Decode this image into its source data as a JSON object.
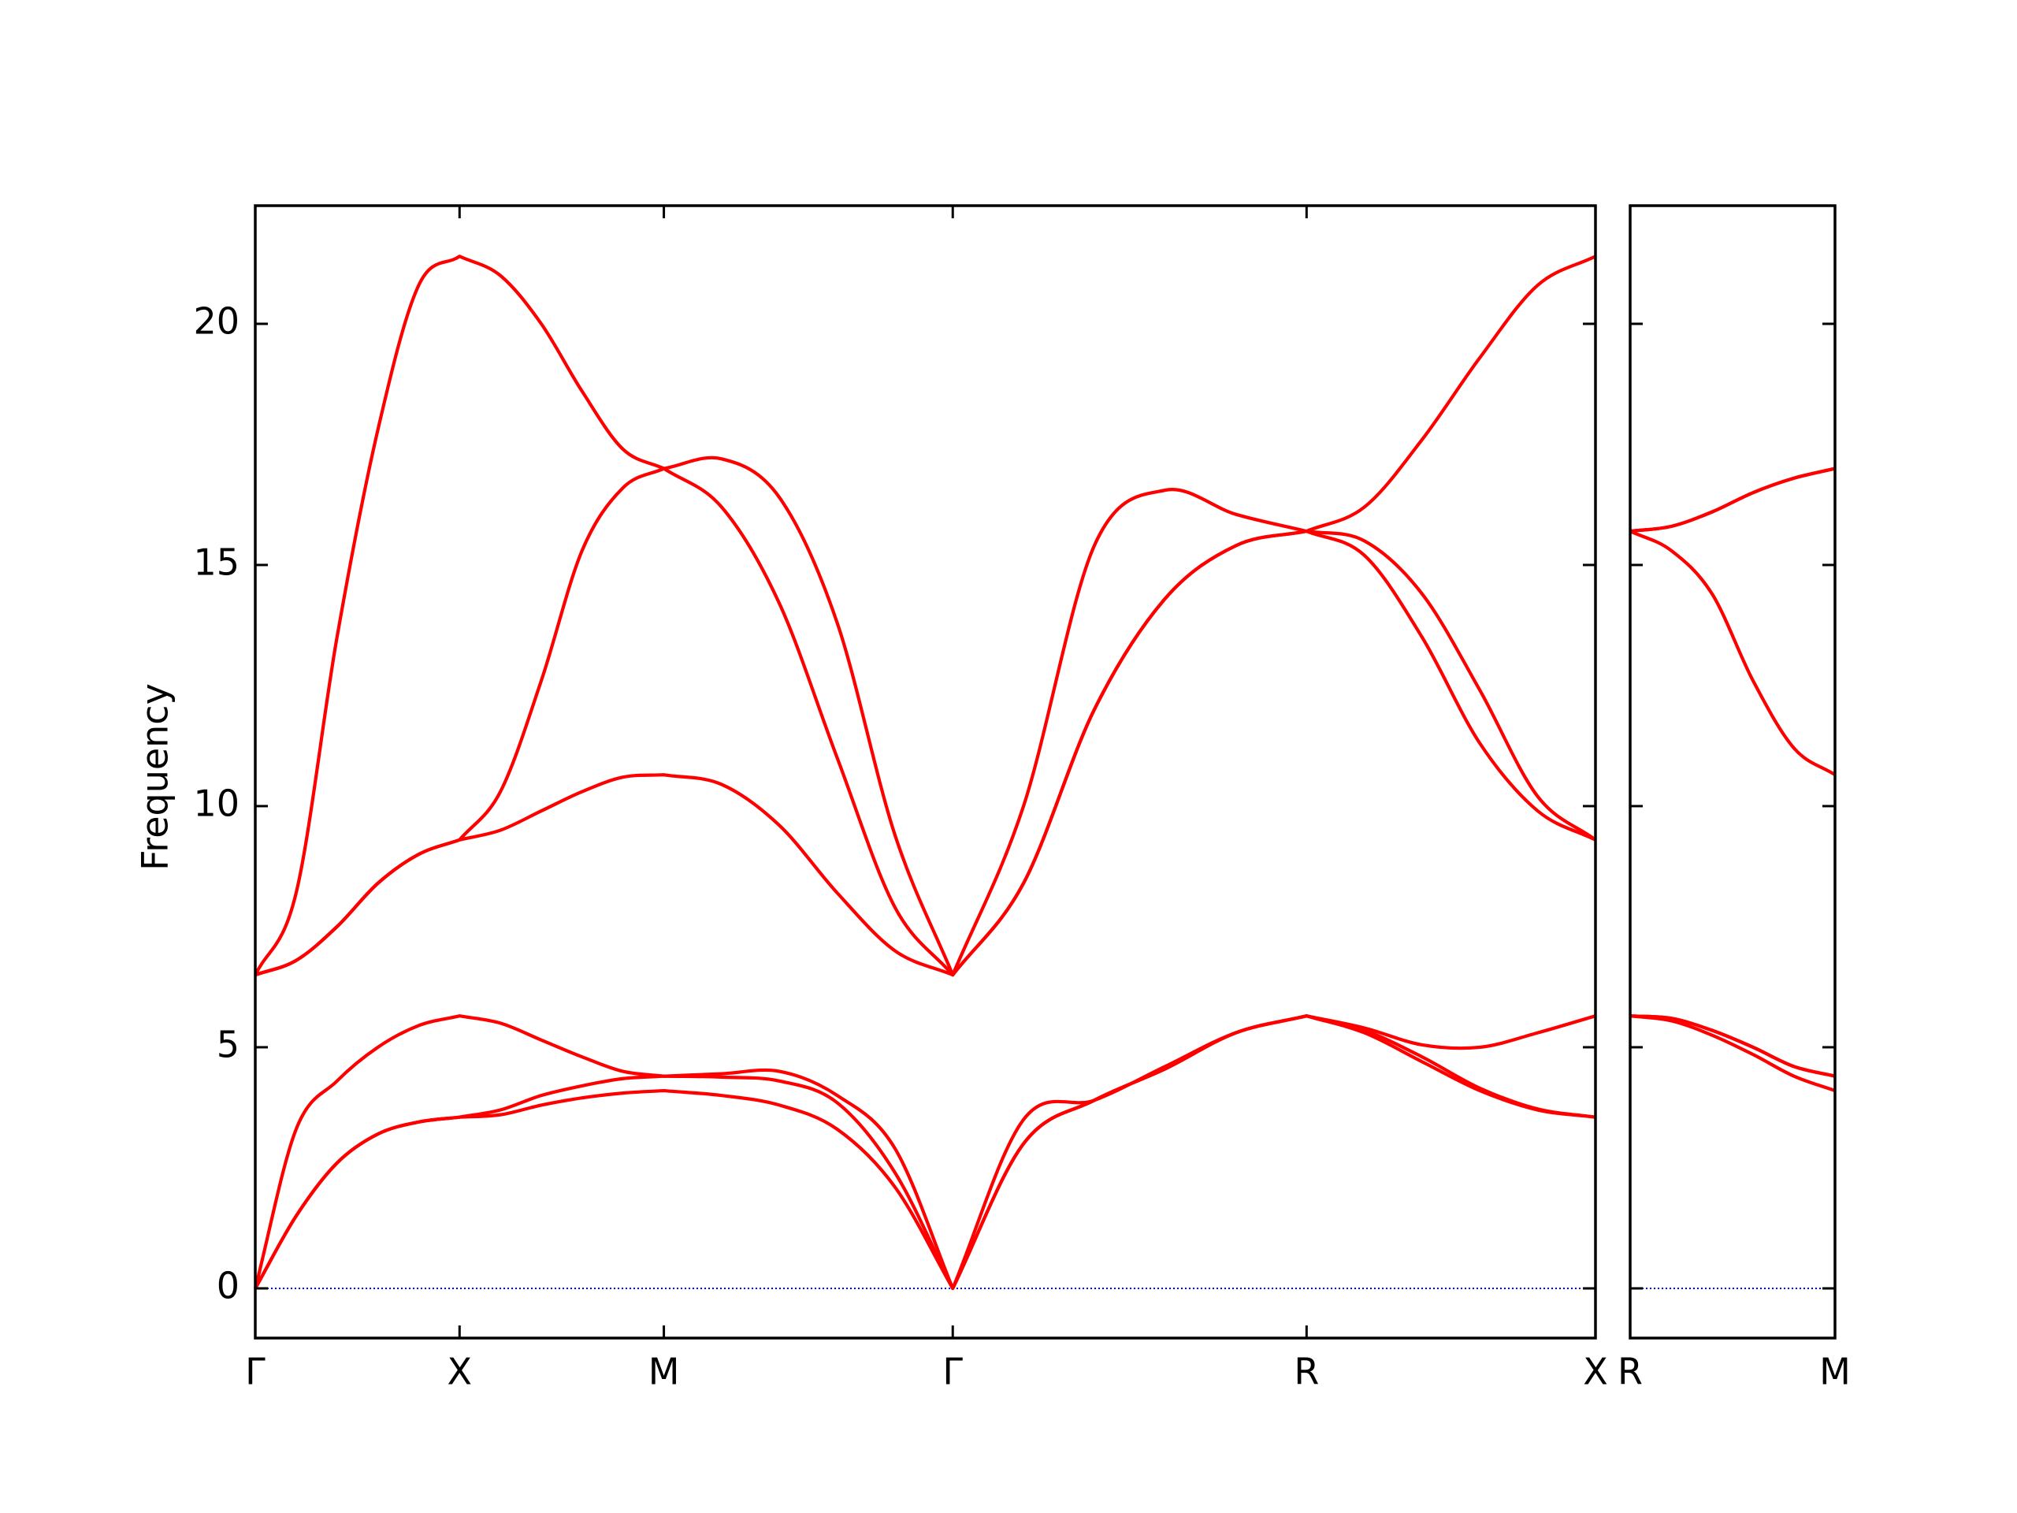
{
  "chart_data": [
    {
      "type": "line",
      "y_label": "Frequency",
      "x": [
        0,
        0.1,
        0.2,
        0.3,
        0.4,
        0.5,
        0.6,
        0.7,
        0.8,
        0.9,
        1.0,
        1.1414,
        1.2828,
        1.4243,
        1.5657,
        1.7071,
        1.8803,
        2.0535,
        2.2267,
        2.3999,
        2.5731,
        2.7145,
        2.8559,
        2.9974,
        3.1388,
        3.2802
      ],
      "xlim": [
        0,
        3.2802
      ],
      "xticks": [
        {
          "value": 0,
          "label": "Γ"
        },
        {
          "value": 0.5,
          "label": "X"
        },
        {
          "value": 1.0,
          "label": "M"
        },
        {
          "value": 1.7071,
          "label": "Γ"
        },
        {
          "value": 2.5731,
          "label": "R"
        },
        {
          "value": 3.2802,
          "label": "X"
        }
      ],
      "ylim": [
        -1.03,
        22.45
      ],
      "yticks": [
        0,
        5,
        10,
        15,
        20
      ],
      "hline": 0,
      "hline_color": "#0000cc",
      "series": [
        {
          "color": "#ff0000",
          "values": [
            0,
            1.5,
            2.6,
            3.2,
            3.45,
            3.55,
            3.6,
            3.8,
            3.95,
            4.05,
            4.1,
            4.0,
            3.8,
            3.3,
            2.1,
            0,
            3.0,
            3.9,
            4.55,
            5.3,
            5.65,
            5.3,
            4.7,
            4.1,
            3.7,
            3.55
          ]
        },
        {
          "color": "#ff0000",
          "values": [
            0,
            1.5,
            2.6,
            3.2,
            3.45,
            3.55,
            3.7,
            4.0,
            4.2,
            4.35,
            4.4,
            4.38,
            4.3,
            3.85,
            2.4,
            0,
            3.0,
            3.9,
            4.55,
            5.3,
            5.65,
            5.35,
            4.8,
            4.15,
            3.72,
            3.55
          ]
        },
        {
          "color": "#ff0000",
          "values": [
            0,
            3.3,
            4.3,
            5.0,
            5.45,
            5.65,
            5.5,
            5.15,
            4.8,
            4.5,
            4.4,
            4.45,
            4.5,
            4.0,
            2.9,
            0,
            3.5,
            3.9,
            4.6,
            5.3,
            5.65,
            5.4,
            5.05,
            5.0,
            5.3,
            5.65
          ]
        },
        {
          "color": "#ff0000",
          "values": [
            6.5,
            6.8,
            7.5,
            8.4,
            9.0,
            9.3,
            9.5,
            9.9,
            10.3,
            10.6,
            10.65,
            10.45,
            9.6,
            8.2,
            7.0,
            6.5,
            8.4,
            12.0,
            14.3,
            15.4,
            15.7,
            15.2,
            13.5,
            11.3,
            9.9,
            9.3
          ]
        },
        {
          "color": "#ff0000",
          "values": [
            6.5,
            6.8,
            7.5,
            8.4,
            9.0,
            9.3,
            10.3,
            12.6,
            15.3,
            16.6,
            17.0,
            16.2,
            14.2,
            11.0,
            7.9,
            6.5,
            8.4,
            12.0,
            14.3,
            15.4,
            15.7,
            15.5,
            14.4,
            12.4,
            10.2,
            9.3
          ]
        },
        {
          "color": "#ff0000",
          "values": [
            6.5,
            8.2,
            13.5,
            17.8,
            20.8,
            21.4,
            21.0,
            20.0,
            18.6,
            17.4,
            17.0,
            17.2,
            16.4,
            13.8,
            9.4,
            6.5,
            10.0,
            15.4,
            16.55,
            16.05,
            15.7,
            16.2,
            17.6,
            19.3,
            20.8,
            21.4
          ]
        }
      ]
    },
    {
      "type": "line",
      "x": [
        0,
        0.1,
        0.2,
        0.3,
        0.4,
        0.5
      ],
      "xlim": [
        0,
        0.5
      ],
      "xticks": [
        {
          "value": 0,
          "label": "R"
        },
        {
          "value": 0.5,
          "label": "M"
        }
      ],
      "series": [
        {
          "color": "#ff0000",
          "values": [
            5.65,
            5.55,
            5.25,
            4.85,
            4.4,
            4.1
          ]
        },
        {
          "color": "#ff0000",
          "values": [
            5.65,
            5.6,
            5.35,
            5.0,
            4.6,
            4.4
          ]
        },
        {
          "color": "#ff0000",
          "values": [
            5.65,
            5.6,
            5.35,
            5.0,
            4.6,
            4.4
          ]
        },
        {
          "color": "#ff0000",
          "values": [
            15.7,
            15.3,
            14.4,
            12.6,
            11.2,
            10.65
          ]
        },
        {
          "color": "#ff0000",
          "values": [
            15.7,
            15.8,
            16.1,
            16.5,
            16.8,
            17.0
          ]
        },
        {
          "color": "#ff0000",
          "values": [
            15.7,
            15.8,
            16.1,
            16.5,
            16.8,
            17.0
          ]
        }
      ]
    }
  ]
}
